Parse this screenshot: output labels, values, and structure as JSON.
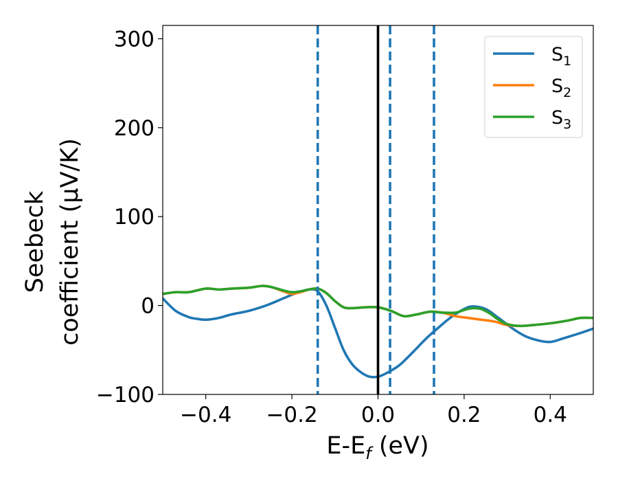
{
  "chart_data": {
    "type": "line",
    "title": "",
    "xlabel": "E-E_f (eV)",
    "xlabel_parts": {
      "main": "E-E",
      "sub": "f",
      "rest": " (eV)"
    },
    "ylabel": "Seebeck coefficient (μV/K)",
    "ylabel_lines": [
      "Seebeck",
      "coefficient (μV/K)"
    ],
    "xlim": [
      -0.5,
      0.5
    ],
    "ylim": [
      -100,
      315
    ],
    "xticks": [
      -0.4,
      -0.2,
      0.0,
      0.2,
      0.4
    ],
    "xtick_labels": [
      "−0.4",
      "−0.2",
      "0.0",
      "0.2",
      "0.4"
    ],
    "yticks": [
      -100,
      0,
      100,
      200,
      300
    ],
    "ytick_labels": [
      "−100",
      "0",
      "100",
      "200",
      "300"
    ],
    "grid": false,
    "legend_position": "top-right",
    "series": [
      {
        "name": "S1",
        "label_main": "S",
        "label_sub": "1",
        "color": "#1f77b4",
        "x": [
          -0.5,
          -0.47,
          -0.44,
          -0.42,
          -0.4,
          -0.37,
          -0.34,
          -0.3,
          -0.26,
          -0.22,
          -0.19,
          -0.16,
          -0.14,
          -0.12,
          -0.1,
          -0.08,
          -0.06,
          -0.04,
          -0.02,
          0.0,
          0.02,
          0.05,
          0.08,
          0.11,
          0.14,
          0.17,
          0.2,
          0.22,
          0.25,
          0.28,
          0.31,
          0.34,
          0.37,
          0.4,
          0.43,
          0.47,
          0.5
        ],
        "values": [
          8,
          -6,
          -13,
          -15,
          -16,
          -14,
          -10,
          -6,
          0,
          8,
          14,
          18,
          16,
          0,
          -25,
          -50,
          -66,
          -75,
          -80,
          -80,
          -76,
          -67,
          -53,
          -38,
          -25,
          -13,
          -4,
          -1,
          -4,
          -14,
          -25,
          -34,
          -39,
          -41,
          -37,
          -31,
          -26
        ]
      },
      {
        "name": "S2",
        "label_main": "S",
        "label_sub": "2",
        "color": "#ff7f0e",
        "x": [
          -0.5,
          -0.47,
          -0.44,
          -0.4,
          -0.37,
          -0.34,
          -0.3,
          -0.27,
          -0.25,
          -0.22,
          -0.2,
          -0.18,
          -0.16,
          -0.14,
          -0.12,
          -0.1,
          -0.08,
          -0.06,
          -0.03,
          0.0,
          0.03,
          0.06,
          0.09,
          0.12,
          0.15,
          0.18,
          0.21,
          0.24,
          0.27,
          0.3,
          0.33,
          0.36,
          0.4,
          0.44,
          0.47,
          0.5
        ],
        "values": [
          13,
          15,
          15,
          19,
          18,
          19,
          20,
          22,
          21,
          16,
          13,
          15,
          18,
          19,
          14,
          5,
          -2,
          -3,
          -2,
          -2,
          -6,
          -12,
          -10,
          -7,
          -8,
          -12,
          -14,
          -16,
          -18,
          -22,
          -23,
          -22,
          -20,
          -17,
          -14,
          -14
        ]
      },
      {
        "name": "S3",
        "label_main": "S",
        "label_sub": "3",
        "color": "#2ca02c",
        "x": [
          -0.5,
          -0.47,
          -0.44,
          -0.4,
          -0.37,
          -0.34,
          -0.3,
          -0.27,
          -0.25,
          -0.22,
          -0.2,
          -0.18,
          -0.16,
          -0.14,
          -0.12,
          -0.1,
          -0.08,
          -0.06,
          -0.03,
          0.0,
          0.03,
          0.06,
          0.09,
          0.12,
          0.15,
          0.18,
          0.2,
          0.22,
          0.24,
          0.26,
          0.28,
          0.3,
          0.33,
          0.36,
          0.4,
          0.44,
          0.47,
          0.5
        ],
        "values": [
          13,
          15,
          15,
          19,
          18,
          19,
          20,
          22,
          21,
          17,
          15,
          16,
          18,
          19,
          14,
          5,
          -2,
          -3,
          -2,
          -2,
          -6,
          -12,
          -10,
          -7,
          -8,
          -8,
          -5,
          -3,
          -4,
          -9,
          -16,
          -21,
          -23,
          -22,
          -20,
          -17,
          -14,
          -14
        ]
      }
    ],
    "vertical_lines": [
      {
        "x": 0.0,
        "style": "solid",
        "color": "#000000"
      },
      {
        "x": -0.14,
        "style": "dashed",
        "color": "#1f77b4"
      },
      {
        "x": 0.028,
        "style": "dashed",
        "color": "#1f77b4"
      },
      {
        "x": 0.13,
        "style": "dashed",
        "color": "#1f77b4"
      }
    ]
  }
}
